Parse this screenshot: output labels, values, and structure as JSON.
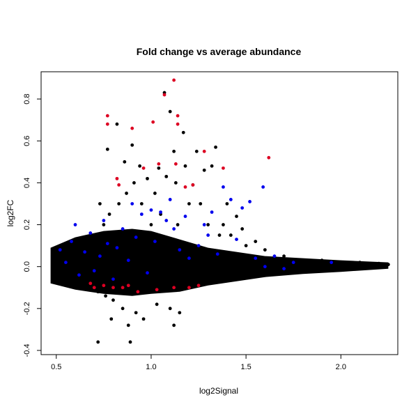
{
  "chart_data": {
    "type": "scatter",
    "title": "Fold change vs average abundance",
    "xlabel": "log2Signal",
    "ylabel": "log2FC",
    "xlim": [
      0.42,
      2.3
    ],
    "ylim": [
      -0.42,
      0.93
    ],
    "x_ticks": [
      "0.5",
      "1.0",
      "1.5",
      "2.0"
    ],
    "x_tick_values": [
      0.5,
      1.0,
      1.5,
      2.0
    ],
    "y_ticks": [
      "-0.4",
      "-0.2",
      "0.0",
      "0.2",
      "0.4",
      "0.6",
      "0.8"
    ],
    "y_tick_values": [
      -0.4,
      -0.2,
      0.0,
      0.2,
      0.4,
      0.6,
      0.8
    ],
    "grid": false,
    "legend": "none",
    "colors": {
      "black": "#000000",
      "blue": "#0000ee",
      "red": "#dd0022"
    },
    "series": [
      {
        "color": "black",
        "points": [
          [
            0.48,
            0.05
          ],
          [
            0.5,
            -0.04
          ],
          [
            0.52,
            0.03
          ],
          [
            0.55,
            0.08
          ],
          [
            0.57,
            -0.06
          ],
          [
            0.6,
            0.1
          ],
          [
            0.62,
            -0.08
          ],
          [
            0.65,
            0.12
          ],
          [
            0.67,
            -0.1
          ],
          [
            0.7,
            0.15
          ],
          [
            0.72,
            -0.12
          ],
          [
            0.73,
            0.3
          ],
          [
            0.75,
            0.2
          ],
          [
            0.76,
            -0.14
          ],
          [
            0.77,
            0.56
          ],
          [
            0.78,
            0.25
          ],
          [
            0.8,
            -0.16
          ],
          [
            0.82,
            0.68
          ],
          [
            0.83,
            0.3
          ],
          [
            0.85,
            -0.2
          ],
          [
            0.86,
            0.5
          ],
          [
            0.87,
            0.35
          ],
          [
            0.88,
            -0.28
          ],
          [
            0.9,
            0.58
          ],
          [
            0.91,
            0.4
          ],
          [
            0.92,
            -0.22
          ],
          [
            0.94,
            0.48
          ],
          [
            0.95,
            0.3
          ],
          [
            0.96,
            -0.25
          ],
          [
            0.98,
            0.42
          ],
          [
            1.0,
            0.2
          ],
          [
            1.02,
            0.35
          ],
          [
            1.03,
            -0.18
          ],
          [
            1.04,
            0.47
          ],
          [
            1.05,
            0.25
          ],
          [
            1.07,
            0.83
          ],
          [
            1.08,
            0.43
          ],
          [
            1.1,
            0.74
          ],
          [
            1.1,
            -0.2
          ],
          [
            1.12,
            0.55
          ],
          [
            1.12,
            -0.28
          ],
          [
            1.13,
            0.4
          ],
          [
            1.14,
            0.2
          ],
          [
            1.15,
            -0.22
          ],
          [
            1.17,
            0.64
          ],
          [
            1.18,
            0.48
          ],
          [
            1.2,
            0.3
          ],
          [
            1.22,
            0.39
          ],
          [
            1.24,
            0.55
          ],
          [
            1.26,
            0.3
          ],
          [
            1.28,
            0.46
          ],
          [
            1.3,
            0.2
          ],
          [
            1.32,
            0.48
          ],
          [
            1.34,
            0.57
          ],
          [
            1.36,
            0.15
          ],
          [
            1.38,
            0.2
          ],
          [
            1.4,
            0.3
          ],
          [
            1.42,
            0.15
          ],
          [
            1.45,
            0.24
          ],
          [
            1.48,
            0.18
          ],
          [
            1.5,
            0.1
          ],
          [
            1.55,
            0.12
          ],
          [
            1.6,
            0.08
          ],
          [
            0.72,
            -0.36
          ],
          [
            0.79,
            -0.25
          ],
          [
            0.89,
            -0.36
          ],
          [
            1.2,
            -0.09
          ],
          [
            1.3,
            -0.07
          ],
          [
            1.4,
            -0.05
          ],
          [
            1.5,
            -0.04
          ],
          [
            1.6,
            -0.03
          ],
          [
            1.7,
            -0.03
          ],
          [
            1.8,
            -0.02
          ],
          [
            1.9,
            -0.02
          ],
          [
            2.0,
            -0.01
          ],
          [
            2.1,
            0.0
          ],
          [
            2.2,
            0.01
          ],
          [
            2.25,
            0.01
          ],
          [
            1.7,
            0.05
          ],
          [
            1.8,
            0.03
          ],
          [
            1.9,
            0.03
          ],
          [
            2.0,
            0.02
          ],
          [
            2.1,
            0.02
          ],
          [
            2.2,
            0.015
          ]
        ]
      },
      {
        "color": "blue",
        "points": [
          [
            0.52,
            0.08
          ],
          [
            0.55,
            0.02
          ],
          [
            0.58,
            0.12
          ],
          [
            0.6,
            0.2
          ],
          [
            0.62,
            -0.04
          ],
          [
            0.65,
            0.07
          ],
          [
            0.68,
            0.16
          ],
          [
            0.7,
            -0.02
          ],
          [
            0.73,
            0.05
          ],
          [
            0.75,
            0.22
          ],
          [
            0.77,
            0.11
          ],
          [
            0.8,
            -0.06
          ],
          [
            0.82,
            0.09
          ],
          [
            0.85,
            0.18
          ],
          [
            0.88,
            0.03
          ],
          [
            0.9,
            0.3
          ],
          [
            0.92,
            0.14
          ],
          [
            0.95,
            0.25
          ],
          [
            0.98,
            -0.03
          ],
          [
            1.0,
            0.27
          ],
          [
            1.02,
            0.12
          ],
          [
            1.05,
            0.26
          ],
          [
            1.08,
            0.22
          ],
          [
            1.1,
            0.32
          ],
          [
            1.12,
            0.18
          ],
          [
            1.15,
            0.08
          ],
          [
            1.18,
            0.24
          ],
          [
            1.2,
            0.04
          ],
          [
            1.25,
            0.1
          ],
          [
            1.28,
            0.2
          ],
          [
            1.3,
            0.15
          ],
          [
            1.32,
            0.26
          ],
          [
            1.35,
            0.06
          ],
          [
            1.38,
            0.38
          ],
          [
            1.42,
            0.32
          ],
          [
            1.45,
            0.13
          ],
          [
            1.48,
            0.28
          ],
          [
            1.52,
            0.31
          ],
          [
            1.55,
            0.04
          ],
          [
            1.59,
            0.38
          ],
          [
            1.65,
            0.05
          ],
          [
            1.75,
            0.02
          ],
          [
            1.95,
            0.02
          ],
          [
            1.6,
            0.0
          ],
          [
            1.7,
            -0.01
          ]
        ]
      },
      {
        "color": "red",
        "points": [
          [
            0.77,
            0.72
          ],
          [
            0.77,
            0.68
          ],
          [
            0.8,
            -0.1
          ],
          [
            0.82,
            0.42
          ],
          [
            0.83,
            0.39
          ],
          [
            0.9,
            0.66
          ],
          [
            0.96,
            0.47
          ],
          [
            1.01,
            0.69
          ],
          [
            1.04,
            0.49
          ],
          [
            1.07,
            0.82
          ],
          [
            1.12,
            0.89
          ],
          [
            1.13,
            0.49
          ],
          [
            1.14,
            0.72
          ],
          [
            1.14,
            0.68
          ],
          [
            1.18,
            0.38
          ],
          [
            1.22,
            0.39
          ],
          [
            1.28,
            0.55
          ],
          [
            1.38,
            0.47
          ],
          [
            1.62,
            0.52
          ],
          [
            0.7,
            -0.1
          ],
          [
            0.75,
            -0.09
          ],
          [
            0.85,
            -0.1
          ],
          [
            0.93,
            -0.12
          ],
          [
            1.03,
            -0.11
          ],
          [
            1.12,
            -0.1
          ],
          [
            1.2,
            -0.1
          ],
          [
            1.25,
            -0.09
          ],
          [
            0.68,
            -0.08
          ],
          [
            0.88,
            -0.09
          ]
        ]
      }
    ],
    "density_band": [
      {
        "x": 0.47,
        "lo": -0.08,
        "hi": 0.09
      },
      {
        "x": 0.6,
        "lo": -0.11,
        "hi": 0.14
      },
      {
        "x": 0.75,
        "lo": -0.13,
        "hi": 0.17
      },
      {
        "x": 0.9,
        "lo": -0.14,
        "hi": 0.18
      },
      {
        "x": 1.0,
        "lo": -0.13,
        "hi": 0.17
      },
      {
        "x": 1.15,
        "lo": -0.12,
        "hi": 0.13
      },
      {
        "x": 1.3,
        "lo": -0.09,
        "hi": 0.09
      },
      {
        "x": 1.45,
        "lo": -0.07,
        "hi": 0.07
      },
      {
        "x": 1.6,
        "lo": -0.05,
        "hi": 0.05
      },
      {
        "x": 1.8,
        "lo": -0.035,
        "hi": 0.04
      },
      {
        "x": 2.0,
        "lo": -0.025,
        "hi": 0.03
      },
      {
        "x": 2.25,
        "lo": -0.01,
        "hi": 0.02
      }
    ]
  }
}
